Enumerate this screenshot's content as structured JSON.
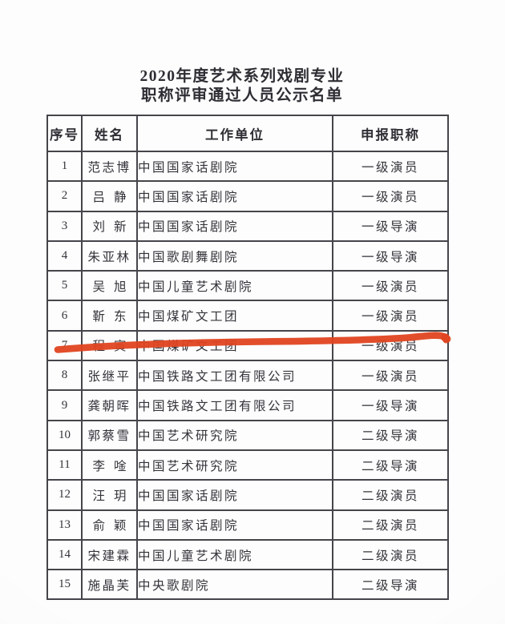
{
  "document": {
    "title_line1": "2020年度艺术系列戏剧专业",
    "title_line2": "职称评审通过人员公示名单"
  },
  "table": {
    "headers": [
      "序号",
      "姓名",
      "工作单位",
      "申报职称"
    ],
    "rows": [
      {
        "no": "1",
        "name": "范志博",
        "unit": "中国国家话剧院",
        "title": "一级演员"
      },
      {
        "no": "2",
        "name": "吕静",
        "unit": "中国国家话剧院",
        "title": "一级演员"
      },
      {
        "no": "3",
        "name": "刘新",
        "unit": "中国国家话剧院",
        "title": "一级导演"
      },
      {
        "no": "4",
        "name": "朱亚林",
        "unit": "中国歌剧舞剧院",
        "title": "一级导演"
      },
      {
        "no": "5",
        "name": "吴旭",
        "unit": "中国儿童艺术剧院",
        "title": "一级演员"
      },
      {
        "no": "6",
        "name": "靳东",
        "unit": "中国煤矿文工团",
        "title": "一级演员"
      },
      {
        "no": "7",
        "name": "程寅",
        "unit": "中国煤矿文工团",
        "title": "一级演员"
      },
      {
        "no": "8",
        "name": "张继平",
        "unit": "中国铁路文工团有限公司",
        "title": "一级演员"
      },
      {
        "no": "9",
        "name": "龚朝晖",
        "unit": "中国铁路文工团有限公司",
        "title": "一级导演"
      },
      {
        "no": "10",
        "name": "郭蔡雪",
        "unit": "中国艺术研究院",
        "title": "二级导演"
      },
      {
        "no": "11",
        "name": "李唫",
        "unit": "中国艺术研究院",
        "title": "二级导演"
      },
      {
        "no": "12",
        "name": "汪玥",
        "unit": "中国国家话剧院",
        "title": "二级演员"
      },
      {
        "no": "13",
        "name": "俞颖",
        "unit": "中国国家话剧院",
        "title": "二级演员"
      },
      {
        "no": "14",
        "name": "宋建霖",
        "unit": "中国儿童艺术剧院",
        "title": "二级演员"
      },
      {
        "no": "15",
        "name": "施晶芙",
        "unit": "中央歌剧院",
        "title": "二级导演"
      }
    ]
  },
  "annotation": {
    "kind": "hand-drawn marker underline",
    "underlined_row_no": "6",
    "underlined_name": "靳东",
    "color": "#e04420"
  }
}
